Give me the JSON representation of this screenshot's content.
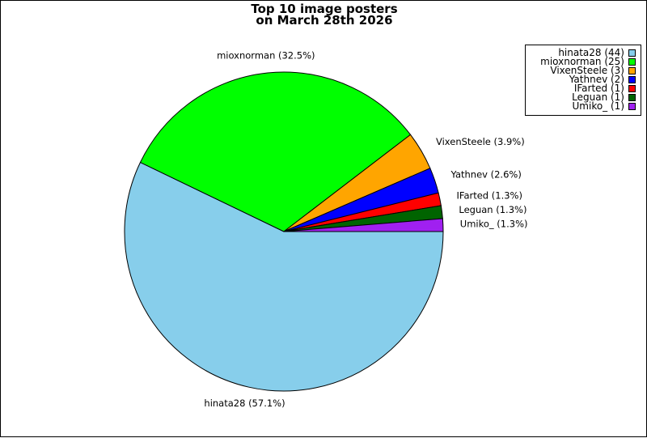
{
  "chart_data": {
    "type": "pie",
    "title": [
      "Top 10 image posters",
      "on March 28th 2026"
    ],
    "slices": [
      {
        "name": "hinata28",
        "value": 44,
        "label": "hinata28 (57.1%)",
        "legend": "hinata28 (44)",
        "color": "#87ceeb"
      },
      {
        "name": "mioxnorman",
        "value": 25,
        "label": "mioxnorman (32.5%)",
        "legend": "mioxnorman (25)",
        "color": "#00ff00"
      },
      {
        "name": "VixenSteele",
        "value": 3,
        "label": "VixenSteele (3.9%)",
        "legend": "VixenSteele (3)",
        "color": "#ffa500"
      },
      {
        "name": "Yathnev",
        "value": 2,
        "label": "Yathnev (2.6%)",
        "legend": "Yathnev (2)",
        "color": "#0000ff"
      },
      {
        "name": "IFarted",
        "value": 1,
        "label": "IFarted (1.3%)",
        "legend": "IFarted (1)",
        "color": "#ff0000"
      },
      {
        "name": "Leguan",
        "value": 1,
        "label": "Leguan (1.3%)",
        "legend": "Leguan (1)",
        "color": "#006400"
      },
      {
        "name": "Umiko_",
        "value": 1,
        "label": "Umiko_ (1.3%)",
        "legend": "Umiko_ (1)",
        "color": "#a020f0"
      }
    ],
    "legend_position": "top-right"
  }
}
